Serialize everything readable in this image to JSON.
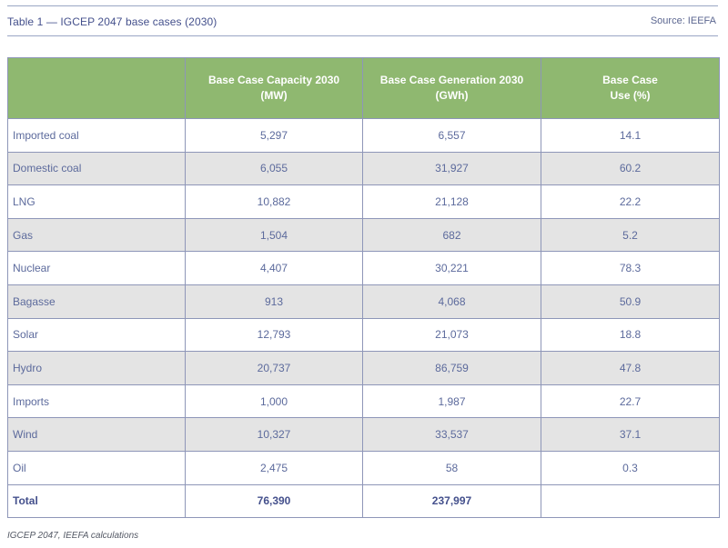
{
  "header": {
    "title": "Table 1 — IGCEP 2047 base cases (2030)",
    "source": "Source: IEEFA"
  },
  "table": {
    "columns": [
      {
        "line1": "",
        "line2": ""
      },
      {
        "line1": "Base Case Capacity 2030",
        "line2": "(MW)"
      },
      {
        "line1": "Base Case Generation 2030",
        "line2": "(GWh)"
      },
      {
        "line1": "Base Case",
        "line2": "Use (%)"
      }
    ],
    "rows": [
      {
        "name": "Imported coal",
        "capacity": "5,297",
        "generation": "6,557",
        "use": "14.1"
      },
      {
        "name": "Domestic coal",
        "capacity": "6,055",
        "generation": "31,927",
        "use": "60.2"
      },
      {
        "name": "LNG",
        "capacity": "10,882",
        "generation": "21,128",
        "use": "22.2"
      },
      {
        "name": "Gas",
        "capacity": "1,504",
        "generation": "682",
        "use": "5.2"
      },
      {
        "name": "Nuclear",
        "capacity": "4,407",
        "generation": "30,221",
        "use": "78.3"
      },
      {
        "name": "Bagasse",
        "capacity": "913",
        "generation": "4,068",
        "use": "50.9"
      },
      {
        "name": "Solar",
        "capacity": "12,793",
        "generation": "21,073",
        "use": "18.8"
      },
      {
        "name": "Hydro",
        "capacity": "20,737",
        "generation": "86,759",
        "use": "47.8"
      },
      {
        "name": "Imports",
        "capacity": "1,000",
        "generation": "1,987",
        "use": "22.7"
      },
      {
        "name": "Wind",
        "capacity": "10,327",
        "generation": "33,537",
        "use": "37.1"
      },
      {
        "name": "Oil",
        "capacity": "2,475",
        "generation": "58",
        "use": "0.3"
      }
    ],
    "total": {
      "name": "Total",
      "capacity": "76,390",
      "generation": "237,997",
      "use": ""
    }
  },
  "footnote": "IGCEP 2047, IEEFA calculations",
  "colors": {
    "header_bg": "#8fb870",
    "title_text": "#44508c",
    "body_text": "#5c6a9c",
    "alt_row": "#e4e4e4",
    "border": "#8e96b8"
  }
}
